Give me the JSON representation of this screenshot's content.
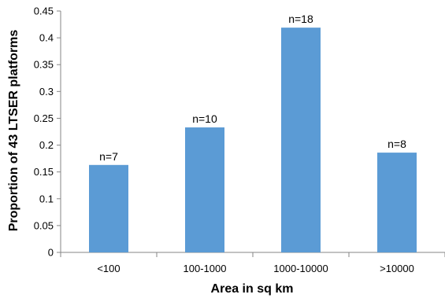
{
  "chart_data": {
    "type": "bar",
    "title": "",
    "xlabel": "Area in sq km",
    "ylabel": "Proportion of 43  LTSER platforms",
    "categories": [
      "<100",
      "100-1000",
      "1000-10000",
      ">10000"
    ],
    "values": [
      0.163,
      0.233,
      0.419,
      0.186
    ],
    "data_labels": [
      "n=7",
      "n=10",
      "n=18",
      "n=8"
    ],
    "ylim": [
      0,
      0.45
    ],
    "yticks": [
      0,
      0.05,
      0.1,
      0.15,
      0.2,
      0.25,
      0.3,
      0.35,
      0.4,
      0.45
    ],
    "ytick_labels": [
      "0",
      "0.05",
      "0.1",
      "0.15",
      "0.2",
      "0.25",
      "0.3",
      "0.35",
      "0.4",
      "0.45"
    ],
    "grid": false,
    "legend": "none",
    "bar_color": "#5b9bd5"
  }
}
